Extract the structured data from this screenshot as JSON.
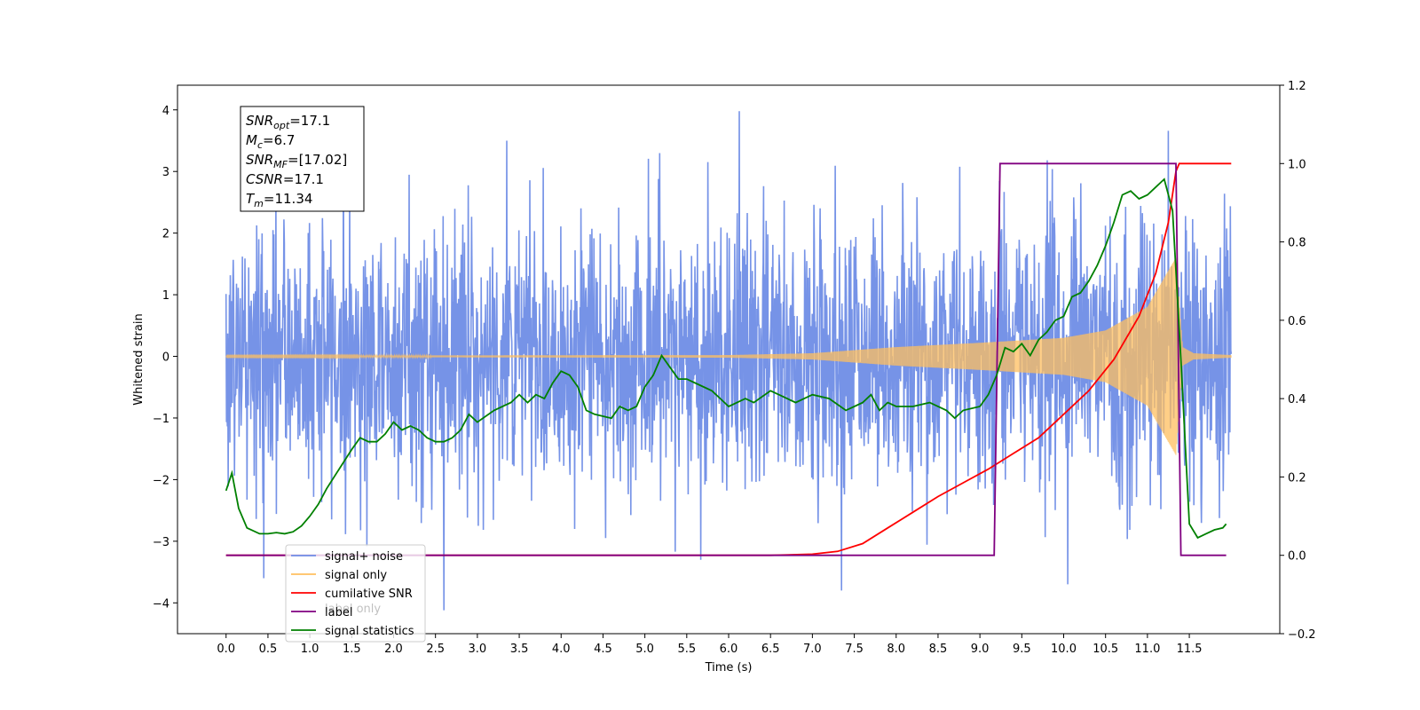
{
  "chart_data": {
    "type": "line",
    "xlabel": "Time (s)",
    "ylabel": "Whitened strain",
    "xlim": [
      -0.58,
      12.58
    ],
    "ylim": [
      -4.5,
      4.4
    ],
    "ylim_right": [
      -0.2,
      1.2
    ],
    "x_ticks": [
      "0.0",
      "0.5",
      "1.0",
      "1.5",
      "2.0",
      "2.5",
      "3.0",
      "3.5",
      "4.0",
      "4.5",
      "5.0",
      "5.5",
      "6.0",
      "6.5",
      "7.0",
      "7.5",
      "8.0",
      "8.5",
      "9.0",
      "9.5",
      "10.0",
      "10.5",
      "11.0",
      "11.5"
    ],
    "y_ticks_left": [
      "4",
      "3",
      "2",
      "1",
      "0",
      "−1",
      "−2",
      "−3",
      "−4"
    ],
    "y_ticks_right": [
      "1.2",
      "1.0",
      "0.8",
      "0.6",
      "0.4",
      "0.2",
      "0.0",
      "−0.2"
    ],
    "legend": {
      "placement": "lower-left",
      "entries": [
        {
          "label": "signal+ noise",
          "color": "#6f8de6"
        },
        {
          "label": "signal only",
          "color": "#ffbf5f"
        },
        {
          "label": "cumilative SNR",
          "color": "#ff0000"
        },
        {
          "label": "label",
          "color": "#800080"
        },
        {
          "label": "signal statistics",
          "color": "#008000"
        }
      ],
      "occluded_label": "label only"
    },
    "annotation": [
      {
        "base": "SNR",
        "sub": "opt",
        "value": "=17.1"
      },
      {
        "base": "M",
        "sub": "c",
        "value": "=6.7"
      },
      {
        "base": "SNR",
        "sub": "MF",
        "value": "=[17.02]"
      },
      {
        "base": "CSNR",
        "sub": "",
        "value": "=17.1"
      },
      {
        "base": "T",
        "sub": "m",
        "value": "=11.34"
      }
    ],
    "series": [
      {
        "name": "signal+ noise",
        "axis": "left",
        "color": "#6f8de6",
        "kind": "noise",
        "x_range": [
          0.0,
          12.0
        ],
        "typical_amplitude": 2.4,
        "notable_peaks": [
          [
            6.13,
            3.98
          ],
          [
            11.25,
            3.66
          ],
          [
            3.35,
            3.5
          ],
          [
            2.6,
            -4.12
          ],
          [
            10.05,
            -3.7
          ],
          [
            7.35,
            -3.8
          ],
          [
            0.45,
            -3.6
          ]
        ]
      },
      {
        "name": "signal only",
        "axis": "left",
        "color": "#ffbf5f",
        "kind": "chirp",
        "envelope": [
          [
            0.0,
            0.01
          ],
          [
            6.0,
            0.02
          ],
          [
            7.0,
            0.05
          ],
          [
            8.0,
            0.15
          ],
          [
            9.0,
            0.22
          ],
          [
            10.0,
            0.3
          ],
          [
            10.5,
            0.42
          ],
          [
            11.0,
            0.8
          ],
          [
            11.34,
            1.6
          ],
          [
            11.42,
            0.15
          ],
          [
            11.55,
            0.05
          ],
          [
            12.0,
            0.02
          ]
        ]
      },
      {
        "name": "cumilative SNR",
        "axis": "right",
        "color": "#ff0000",
        "x": [
          0.0,
          6.5,
          7.0,
          7.3,
          7.6,
          7.9,
          8.2,
          8.5,
          8.8,
          9.1,
          9.4,
          9.7,
          10.0,
          10.3,
          10.6,
          10.9,
          11.1,
          11.25,
          11.34,
          11.38,
          12.0
        ],
        "values": [
          0.0,
          0.0,
          0.003,
          0.01,
          0.03,
          0.07,
          0.11,
          0.15,
          0.185,
          0.22,
          0.26,
          0.3,
          0.36,
          0.42,
          0.5,
          0.61,
          0.72,
          0.85,
          0.98,
          1.0,
          1.0
        ]
      },
      {
        "name": "label",
        "axis": "right",
        "color": "#800080",
        "x": [
          0.0,
          9.17,
          9.24,
          11.34,
          11.4,
          11.94
        ],
        "values": [
          0.0,
          0.0,
          1.0,
          1.0,
          0.0,
          0.0
        ]
      },
      {
        "name": "signal statistics",
        "axis": "right",
        "color": "#008000",
        "x": [
          0.0,
          0.07,
          0.15,
          0.25,
          0.4,
          0.5,
          0.6,
          0.7,
          0.8,
          0.9,
          1.0,
          1.1,
          1.2,
          1.35,
          1.5,
          1.6,
          1.7,
          1.8,
          1.9,
          2.0,
          2.1,
          2.2,
          2.3,
          2.4,
          2.5,
          2.6,
          2.7,
          2.8,
          2.9,
          3.0,
          3.2,
          3.4,
          3.5,
          3.6,
          3.7,
          3.8,
          3.9,
          4.0,
          4.1,
          4.2,
          4.3,
          4.4,
          4.6,
          4.7,
          4.8,
          4.9,
          5.0,
          5.1,
          5.2,
          5.3,
          5.4,
          5.5,
          5.6,
          5.8,
          5.9,
          6.0,
          6.2,
          6.3,
          6.5,
          6.6,
          6.8,
          7.0,
          7.2,
          7.4,
          7.5,
          7.6,
          7.7,
          7.8,
          7.9,
          8.0,
          8.2,
          8.4,
          8.6,
          8.7,
          8.8,
          9.0,
          9.1,
          9.2,
          9.3,
          9.4,
          9.5,
          9.6,
          9.7,
          9.8,
          9.9,
          10.0,
          10.1,
          10.2,
          10.3,
          10.4,
          10.5,
          10.6,
          10.7,
          10.8,
          10.9,
          11.0,
          11.1,
          11.2,
          11.3,
          11.4,
          11.5,
          11.6,
          11.7,
          11.8,
          11.9,
          11.94
        ],
        "values": [
          0.165,
          0.21,
          0.12,
          0.07,
          0.055,
          0.055,
          0.058,
          0.055,
          0.06,
          0.075,
          0.1,
          0.13,
          0.17,
          0.22,
          0.27,
          0.3,
          0.29,
          0.29,
          0.31,
          0.34,
          0.32,
          0.33,
          0.32,
          0.3,
          0.29,
          0.29,
          0.3,
          0.32,
          0.36,
          0.34,
          0.37,
          0.39,
          0.41,
          0.39,
          0.41,
          0.4,
          0.44,
          0.47,
          0.46,
          0.43,
          0.37,
          0.36,
          0.35,
          0.38,
          0.37,
          0.38,
          0.43,
          0.46,
          0.51,
          0.48,
          0.45,
          0.45,
          0.44,
          0.42,
          0.4,
          0.38,
          0.4,
          0.39,
          0.42,
          0.41,
          0.39,
          0.41,
          0.4,
          0.37,
          0.38,
          0.39,
          0.41,
          0.37,
          0.39,
          0.38,
          0.38,
          0.39,
          0.37,
          0.35,
          0.37,
          0.38,
          0.41,
          0.46,
          0.53,
          0.52,
          0.54,
          0.51,
          0.55,
          0.57,
          0.6,
          0.61,
          0.66,
          0.67,
          0.7,
          0.74,
          0.79,
          0.85,
          0.92,
          0.93,
          0.91,
          0.92,
          0.94,
          0.96,
          0.88,
          0.5,
          0.08,
          0.045,
          0.055,
          0.065,
          0.07,
          0.08
        ]
      }
    ]
  }
}
